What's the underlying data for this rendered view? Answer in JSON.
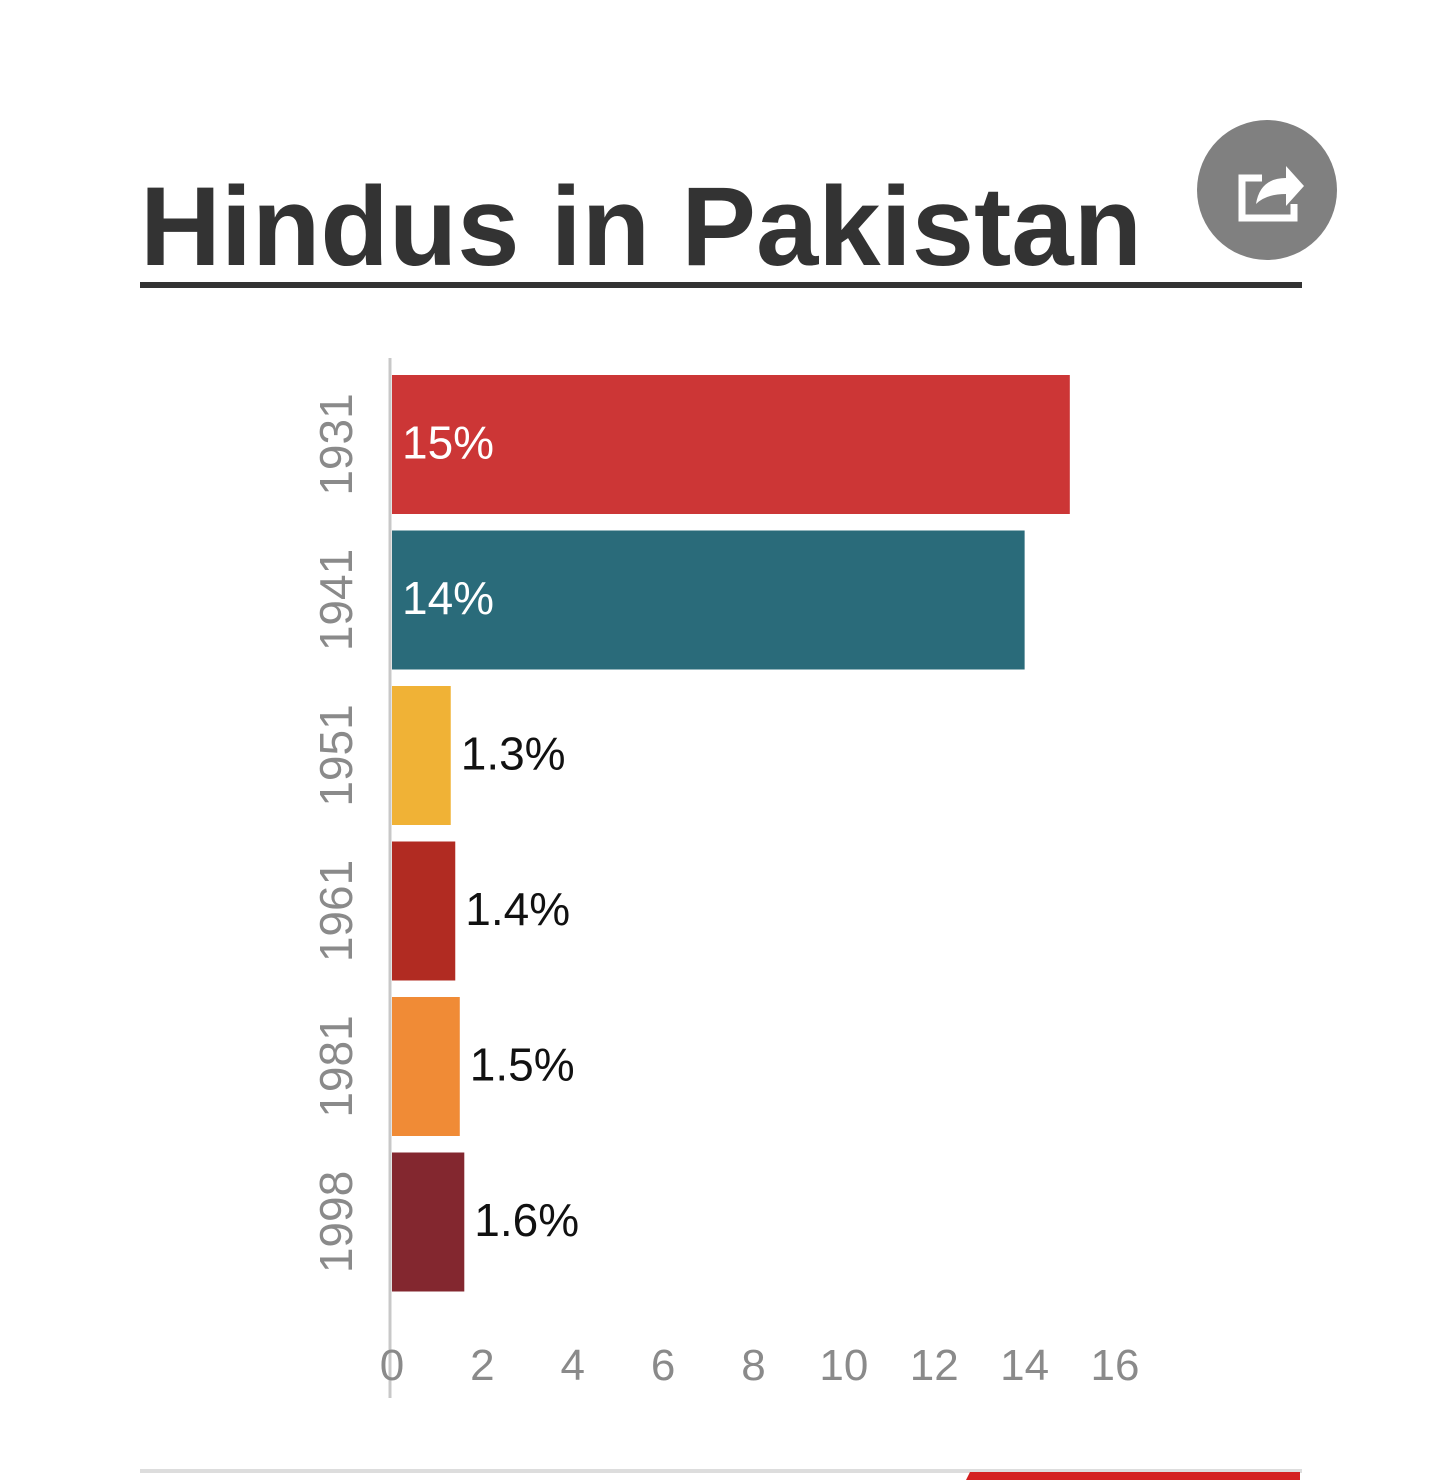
{
  "chart_data": {
    "type": "bar",
    "orientation": "horizontal",
    "title": "Hindus in Pakistan",
    "categories": [
      "1931",
      "1941",
      "1951",
      "1961",
      "1981",
      "1998"
    ],
    "values": [
      15,
      14,
      1.3,
      1.4,
      1.5,
      1.6
    ],
    "value_labels": [
      "15%",
      "14%",
      "1.3%",
      "1.4%",
      "1.5%",
      "1.6%"
    ],
    "colors": [
      "#cc3636",
      "#2a6b7a",
      "#f0b236",
      "#b12b22",
      "#f08b36",
      "#83272f"
    ],
    "xlim": [
      0,
      16
    ],
    "xticks": [
      0,
      2,
      4,
      6,
      8,
      10,
      12,
      14,
      16
    ],
    "grid": false
  }
}
